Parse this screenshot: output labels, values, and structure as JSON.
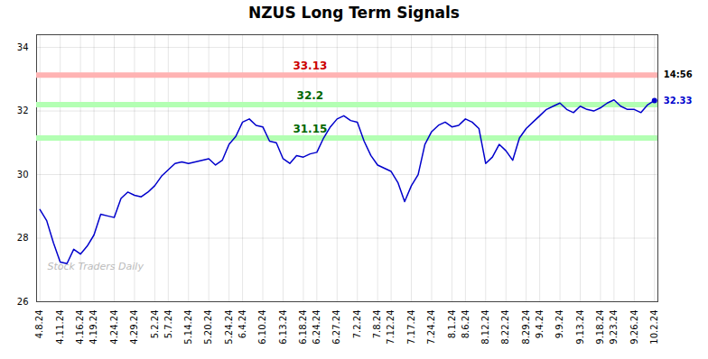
{
  "chart_data": {
    "type": "line",
    "title": "NZUS Long Term Signals",
    "categories": [
      "4.8.24",
      null,
      null,
      "4.11.24",
      null,
      null,
      "4.16.24",
      null,
      "4.19.24",
      null,
      null,
      "4.24.24",
      null,
      null,
      "4.29.24",
      null,
      null,
      "5.2.24",
      null,
      "5.7.24",
      null,
      null,
      "5.14.24",
      null,
      null,
      "5.20.24",
      null,
      null,
      "5.24.24",
      null,
      "6.4.24",
      null,
      null,
      "6.10.24",
      null,
      null,
      "6.13.24",
      null,
      null,
      "6.18.24",
      null,
      "6.24.24",
      null,
      null,
      "6.27.24",
      null,
      null,
      "7.2.24",
      null,
      null,
      "7.8.24",
      null,
      "7.12.24",
      null,
      null,
      "7.17.24",
      null,
      null,
      "7.24.24",
      null,
      null,
      "8.1.24",
      null,
      "8.6.24",
      null,
      null,
      "8.12.24",
      null,
      null,
      "8.22.24",
      null,
      null,
      "8.29.24",
      null,
      "9.4.24",
      null,
      null,
      "9.9.24",
      null,
      null,
      "9.13.24",
      null,
      null,
      "9.18.24",
      null,
      "9.23.24",
      null,
      null,
      "9.26.24",
      null,
      null,
      "10.2.24"
    ],
    "values": [
      28.9,
      28.55,
      27.85,
      27.25,
      27.2,
      27.65,
      27.5,
      27.75,
      28.1,
      28.75,
      28.7,
      28.65,
      29.25,
      29.45,
      29.35,
      29.3,
      29.45,
      29.65,
      29.95,
      30.15,
      30.35,
      30.4,
      30.35,
      30.4,
      30.45,
      30.5,
      30.3,
      30.45,
      30.95,
      31.2,
      31.65,
      31.75,
      31.55,
      31.5,
      31.05,
      31.0,
      30.5,
      30.35,
      30.6,
      30.55,
      30.65,
      30.7,
      31.15,
      31.5,
      31.75,
      31.85,
      31.7,
      31.65,
      31.05,
      30.6,
      30.3,
      30.2,
      30.1,
      29.75,
      29.15,
      29.65,
      30.0,
      30.95,
      31.35,
      31.55,
      31.65,
      31.5,
      31.55,
      31.75,
      31.65,
      31.45,
      30.35,
      30.55,
      30.95,
      30.75,
      30.45,
      31.15,
      31.45,
      31.65,
      31.85,
      32.05,
      32.15,
      32.25,
      32.05,
      31.95,
      32.15,
      32.05,
      32.0,
      32.1,
      32.25,
      32.35,
      32.15,
      32.05,
      32.05,
      31.95,
      32.2,
      32.33
    ],
    "color": "#0000cc",
    "ylim": [
      26,
      34.4
    ],
    "yticks": [
      26,
      28,
      30,
      32,
      34
    ],
    "grid": true,
    "reference_lines": [
      {
        "y": 33.13,
        "color": "#ffb3b3",
        "label": "33.13",
        "label_color": "#cc0000"
      },
      {
        "y": 32.2,
        "color": "#b3ffb3",
        "label": "32.2",
        "label_color": "#006600"
      },
      {
        "y": 31.15,
        "color": "#b3ffb3",
        "label": "31.15",
        "label_color": "#006600"
      }
    ],
    "end_labels": [
      {
        "text": "14:56",
        "y": 33.13,
        "color": "#000000"
      },
      {
        "text": "32.33",
        "y": 32.33,
        "color": "#0000cc"
      }
    ],
    "watermark": {
      "text": "Stock Traders Daily",
      "color": "#bbbbbb"
    }
  }
}
